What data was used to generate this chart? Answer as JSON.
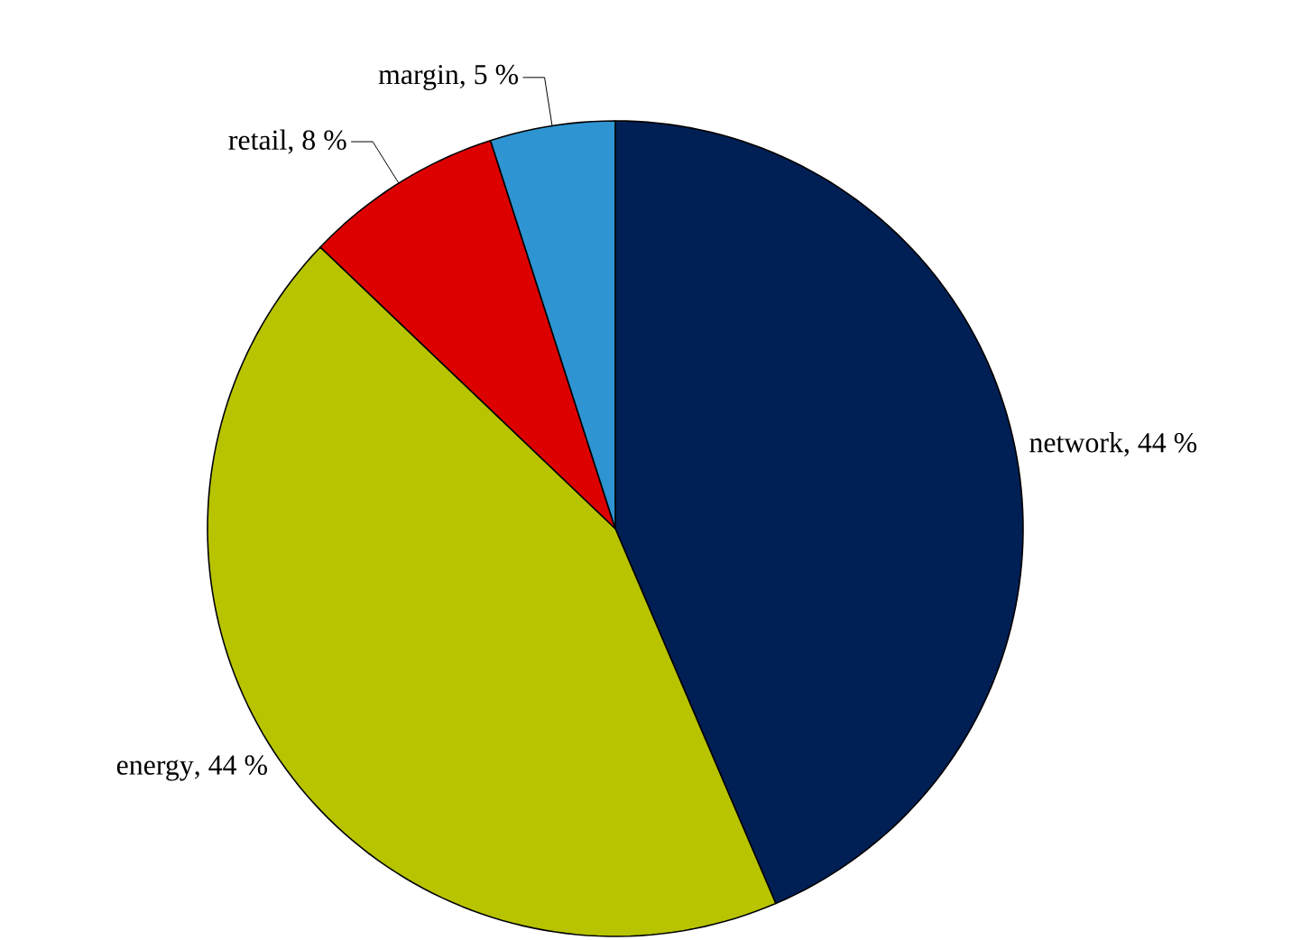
{
  "chart_data": {
    "type": "pie",
    "categories": [
      "network",
      "energy",
      "retail",
      "margin"
    ],
    "values": [
      44,
      44,
      8,
      5
    ],
    "colors": [
      "#001f55",
      "#b8c400",
      "#dd0000",
      "#2e94d2"
    ],
    "value_labels": [
      ", 44 %",
      ", 44 %",
      ", 8 %",
      ", 5 %"
    ]
  }
}
